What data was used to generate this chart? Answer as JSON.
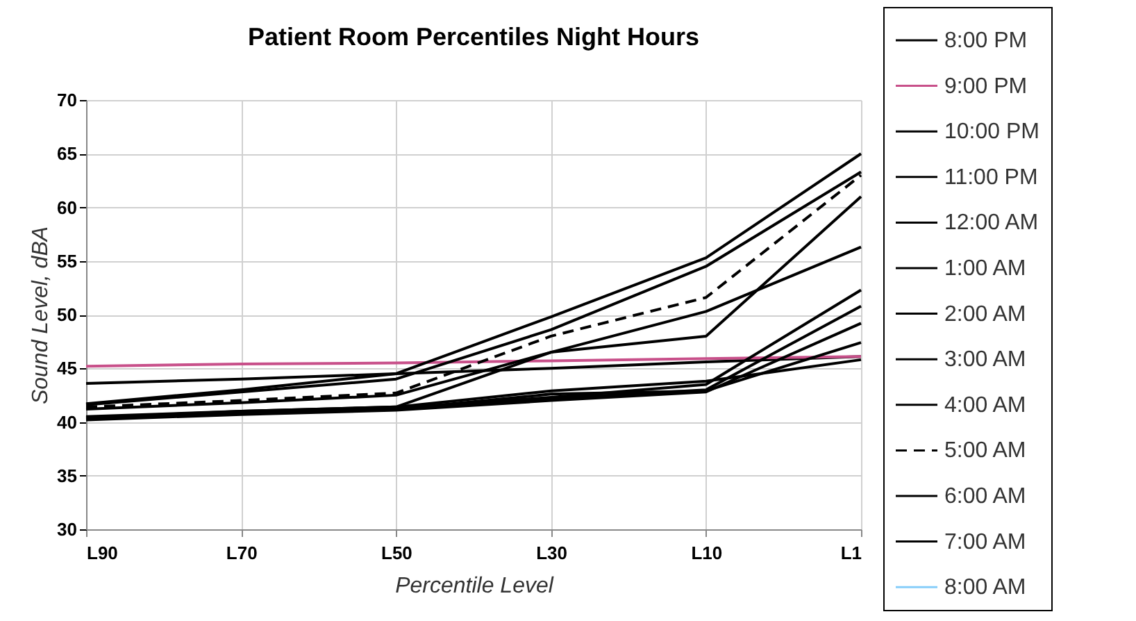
{
  "chart_data": {
    "type": "line",
    "title": "Patient Room Percentiles Night Hours",
    "xlabel": "Percentile Level",
    "ylabel": "Sound Level, dBA",
    "categories": [
      "L90",
      "L70",
      "L50",
      "L30",
      "L10",
      "L1"
    ],
    "ylim": [
      30,
      70
    ],
    "yticks": [
      30,
      35,
      40,
      45,
      50,
      55,
      60,
      65,
      70
    ],
    "grid": true,
    "legend": "right",
    "marker": "none",
    "series": [
      {
        "name": "8:00 PM",
        "color": "#000000",
        "values": [
          43.6,
          44.0,
          44.5,
          45.0,
          45.6,
          46.1
        ]
      },
      {
        "name": "9:00 PM",
        "color": "#c8508a",
        "values": [
          45.2,
          45.4,
          45.5,
          45.7,
          45.9,
          46.1
        ]
      },
      {
        "name": "10:00 PM",
        "color": "#000000",
        "values": [
          41.6,
          42.8,
          44.0,
          48.6,
          54.5,
          63.3
        ]
      },
      {
        "name": "11:00 PM",
        "color": "#000000",
        "values": [
          41.7,
          43.0,
          44.5,
          49.8,
          55.3,
          65.0
        ]
      },
      {
        "name": "12:00 AM",
        "color": "#000000",
        "values": [
          41.2,
          41.8,
          42.5,
          46.5,
          50.3,
          56.3
        ]
      },
      {
        "name": "1:00 AM",
        "color": "#000000",
        "values": [
          40.4,
          40.9,
          41.3,
          42.3,
          43.5,
          52.3
        ]
      },
      {
        "name": "2:00 AM",
        "color": "#000000",
        "values": [
          40.3,
          40.8,
          41.2,
          42.2,
          43.0,
          50.8
        ]
      },
      {
        "name": "3:00 AM",
        "color": "#000000",
        "values": [
          40.2,
          40.7,
          41.1,
          42.0,
          42.8,
          49.2
        ]
      },
      {
        "name": "4:00 AM",
        "color": "#000000",
        "values": [
          40.3,
          40.8,
          41.2,
          42.6,
          42.9,
          47.4
        ]
      },
      {
        "name": "5:00 AM",
        "color": "#000000",
        "line_style": "dashed",
        "values": [
          41.4,
          42.0,
          42.7,
          48.0,
          51.6,
          63.0
        ]
      },
      {
        "name": "6:00 AM",
        "color": "#000000",
        "values": [
          40.4,
          41.0,
          41.4,
          42.9,
          43.8,
          45.8
        ]
      },
      {
        "name": "7:00 AM",
        "color": "#000000",
        "values": [
          40.5,
          41.0,
          41.4,
          46.5,
          48.0,
          61.0
        ]
      },
      {
        "name": "8:00 AM",
        "color": "#87cefa",
        "values": [
          null,
          null,
          null,
          null,
          null,
          null
        ]
      }
    ]
  }
}
